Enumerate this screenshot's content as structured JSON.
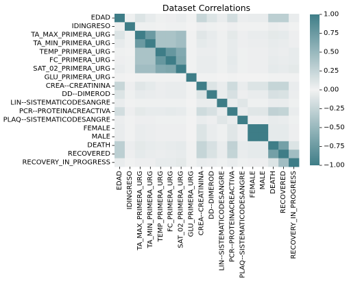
{
  "chart_data": {
    "type": "heatmap",
    "title": "Dataset Correlations",
    "labels": [
      "EDAD",
      "IDINGRESO",
      "TA_MAX_PRIMERA_URG",
      "TA_MIN_PRIMERA_URG",
      "TEMP_PRIMERA_URG",
      "FC_PRIMERA_URG",
      "SAT_02_PRIMERA_URG",
      "GLU_PRIMERA_URG",
      "CREA--CREATININA",
      "DD--DIMEROD",
      "LIN--SISTEMATICODESANGRE",
      "PCR--PROTEINACREACTIVA",
      "PLAQ--SISTEMATICODESANGRE",
      "FEMALE",
      "MALE",
      "DEATH",
      "RECOVERED",
      "RECOVERY_IN_PROGRESS"
    ],
    "matrix": [
      [
        1.0,
        0.02,
        0.12,
        0.06,
        0.02,
        0.03,
        0.05,
        0.01,
        0.24,
        0.12,
        -0.05,
        0.18,
        0.04,
        0.05,
        -0.05,
        0.3,
        0.3,
        0.05
      ],
      [
        0.02,
        1.0,
        0.02,
        0.02,
        0.01,
        0.02,
        0.02,
        0.0,
        0.03,
        0.02,
        0.01,
        0.03,
        0.01,
        0.01,
        -0.01,
        0.04,
        0.03,
        0.01
      ],
      [
        0.12,
        0.02,
        1.0,
        0.75,
        0.4,
        0.4,
        0.45,
        0.01,
        0.1,
        0.06,
        0.02,
        0.08,
        0.03,
        0.05,
        -0.05,
        0.08,
        0.07,
        0.03
      ],
      [
        0.06,
        0.02,
        0.75,
        1.0,
        0.4,
        0.4,
        0.45,
        0.01,
        0.07,
        0.05,
        0.02,
        0.06,
        0.03,
        0.04,
        -0.04,
        0.06,
        0.05,
        0.03
      ],
      [
        0.02,
        0.01,
        0.4,
        0.4,
        1.0,
        0.78,
        0.62,
        0.01,
        0.04,
        0.04,
        0.02,
        0.06,
        0.02,
        0.03,
        -0.03,
        0.05,
        0.04,
        0.06
      ],
      [
        0.03,
        0.02,
        0.4,
        0.4,
        0.78,
        1.0,
        0.65,
        0.01,
        0.05,
        0.05,
        0.02,
        0.07,
        0.02,
        0.03,
        -0.03,
        0.06,
        0.05,
        0.06
      ],
      [
        0.05,
        0.02,
        0.45,
        0.45,
        0.62,
        0.65,
        1.0,
        0.01,
        0.05,
        0.05,
        0.02,
        0.06,
        0.02,
        0.03,
        -0.03,
        0.07,
        0.06,
        0.08
      ],
      [
        0.01,
        0.0,
        0.01,
        0.01,
        0.01,
        0.01,
        0.01,
        1.0,
        0.01,
        0.01,
        0.0,
        0.01,
        0.0,
        0.0,
        0.0,
        0.01,
        0.01,
        0.01
      ],
      [
        0.24,
        0.03,
        0.1,
        0.07,
        0.04,
        0.05,
        0.05,
        0.01,
        1.0,
        0.12,
        0.05,
        0.2,
        0.05,
        0.12,
        -0.12,
        0.25,
        0.25,
        0.05
      ],
      [
        0.12,
        0.02,
        0.06,
        0.05,
        0.04,
        0.05,
        0.05,
        0.01,
        0.12,
        1.0,
        0.05,
        0.15,
        0.03,
        0.05,
        -0.05,
        0.15,
        0.14,
        0.04
      ],
      [
        -0.05,
        0.01,
        0.02,
        0.02,
        0.02,
        0.02,
        0.02,
        0.0,
        0.05,
        0.05,
        1.0,
        0.05,
        0.1,
        0.02,
        -0.02,
        0.05,
        0.05,
        0.02
      ],
      [
        0.18,
        0.03,
        0.08,
        0.06,
        0.06,
        0.07,
        0.06,
        0.01,
        0.2,
        0.15,
        0.05,
        1.0,
        0.05,
        0.1,
        -0.1,
        0.28,
        0.26,
        0.05
      ],
      [
        0.04,
        0.01,
        0.03,
        0.03,
        0.02,
        0.02,
        0.02,
        0.0,
        0.05,
        0.03,
        0.1,
        0.05,
        1.0,
        0.03,
        -0.03,
        0.06,
        0.05,
        0.02
      ],
      [
        0.05,
        0.01,
        0.05,
        0.04,
        0.03,
        0.03,
        0.03,
        0.0,
        0.12,
        0.05,
        0.02,
        0.1,
        0.03,
        1.0,
        1.0,
        0.07,
        0.07,
        0.03
      ],
      [
        -0.05,
        -0.01,
        -0.05,
        -0.04,
        -0.03,
        -0.03,
        -0.03,
        0.0,
        -0.12,
        -0.05,
        -0.02,
        -0.1,
        -0.03,
        1.0,
        1.0,
        -0.07,
        -0.07,
        -0.03
      ],
      [
        0.3,
        0.04,
        0.08,
        0.06,
        0.05,
        0.06,
        0.07,
        0.01,
        0.25,
        0.15,
        0.05,
        0.28,
        0.06,
        0.07,
        -0.07,
        1.0,
        0.7,
        0.12
      ],
      [
        0.3,
        0.03,
        0.07,
        0.05,
        0.04,
        0.05,
        0.06,
        0.01,
        0.25,
        0.14,
        0.05,
        0.26,
        0.05,
        0.07,
        -0.07,
        0.7,
        1.0,
        0.45
      ],
      [
        0.05,
        0.01,
        0.03,
        0.03,
        0.06,
        0.06,
        0.08,
        0.01,
        0.05,
        0.04,
        0.02,
        0.05,
        0.02,
        0.03,
        -0.03,
        0.12,
        0.45,
        1.0
      ]
    ],
    "vmin": -1.0,
    "vmax": 1.0,
    "colorbar_ticks": [
      1.0,
      0.75,
      0.5,
      0.25,
      0.0,
      -0.25,
      -0.5,
      -0.75,
      -1.0
    ],
    "colorbar_tick_labels": [
      "1.00",
      "0.75",
      "0.50",
      "0.25",
      "0.00",
      "−0.25",
      "−0.50",
      "−0.75",
      "−1.00"
    ],
    "colors": {
      "negative_end": "#3e7d87",
      "center": "#f2f2f2",
      "positive_end": "#3e7d87"
    }
  }
}
